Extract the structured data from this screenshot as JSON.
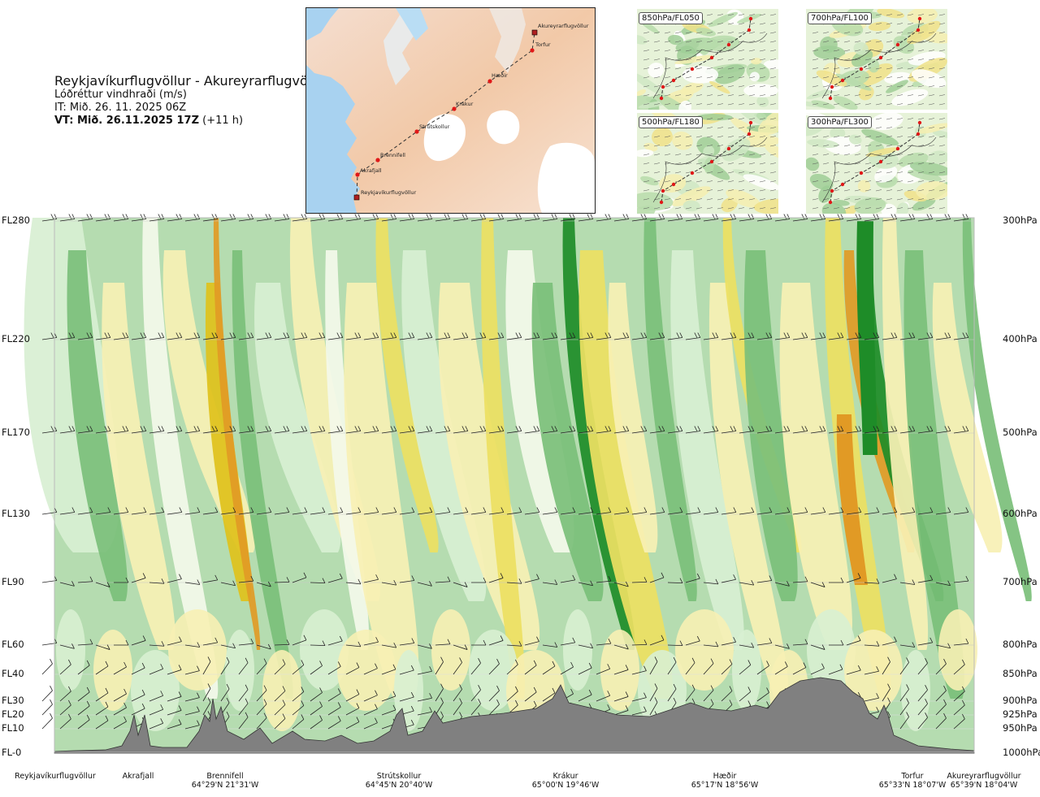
{
  "title": {
    "route": "Reykjavíkurflugvöllur - Akureyrarflugvöllur",
    "parameter": "Lóðréttur vindhraði (m/s)",
    "init_time": "IT: Mið. 26. 11. 2025 06Z",
    "valid_label": "VT: Mið. 26.11.2025 17Z",
    "valid_offset": "(+11 h)"
  },
  "map": {
    "stations": [
      {
        "name": "Akureyrarflugvöllur"
      },
      {
        "name": "Torfur"
      },
      {
        "name": "Hæðir"
      },
      {
        "name": "Krákur"
      },
      {
        "name": "Strútskollur"
      },
      {
        "name": "Brennifell"
      },
      {
        "name": "Akrafjall"
      },
      {
        "name": "Reykjavíkurflugvöllur"
      }
    ]
  },
  "mini_maps": [
    {
      "label": "850hPa/FL050"
    },
    {
      "label": "700hPa/FL100"
    },
    {
      "label": "500hPa/FL180"
    },
    {
      "label": "300hPa/FL300"
    }
  ],
  "chart_data": {
    "type": "heatmap",
    "description_en": "Vertical cross-section of vertical wind speed along route",
    "levels": [
      {
        "fl": "FL280",
        "p": "300hPa"
      },
      {
        "fl": "FL220",
        "p": "400hPa"
      },
      {
        "fl": "FL170",
        "p": "500hPa"
      },
      {
        "fl": "FL130",
        "p": "600hPa"
      },
      {
        "fl": "FL90",
        "p": "700hPa"
      },
      {
        "fl": "FL60",
        "p": "800hPa"
      },
      {
        "fl": "FL40",
        "p": "850hPa"
      },
      {
        "fl": "FL30",
        "p": "900hPa"
      },
      {
        "fl": "FL20",
        "p": "925hPa"
      },
      {
        "fl": "FL10",
        "p": "950hPa"
      },
      {
        "fl": "FL-0",
        "p": "1000hPa"
      }
    ],
    "waypoints": [
      {
        "name": "Reykjavíkurflugvöllur",
        "coords": ""
      },
      {
        "name": "Akrafjall",
        "coords": ""
      },
      {
        "name": "Brennifell",
        "coords": "64°29'N 21°31'W"
      },
      {
        "name": "Strútskollur",
        "coords": "64°45'N 20°40'W"
      },
      {
        "name": "Krákur",
        "coords": "65°00'N 19°46'W"
      },
      {
        "name": "Hæðir",
        "coords": "65°17'N 18°56'W"
      },
      {
        "name": "Torfur",
        "coords": "65°33'N 18°07'W"
      },
      {
        "name": "Akureyrarflugvöllur",
        "coords": "65°39'N 18°04'W"
      }
    ],
    "colors": {
      "strong_down": "#1e8c28",
      "mod_down": "#7bbf7a",
      "weak_down": "#b5dcb0",
      "very_weak_down": "#d8efd2",
      "neutral": "#f4f9ea",
      "weak_up": "#f7f0b4",
      "mod_up": "#eddf62",
      "strong_up": "#e0c11b",
      "very_strong_up": "#e19a25",
      "terrain": "#808080"
    }
  }
}
